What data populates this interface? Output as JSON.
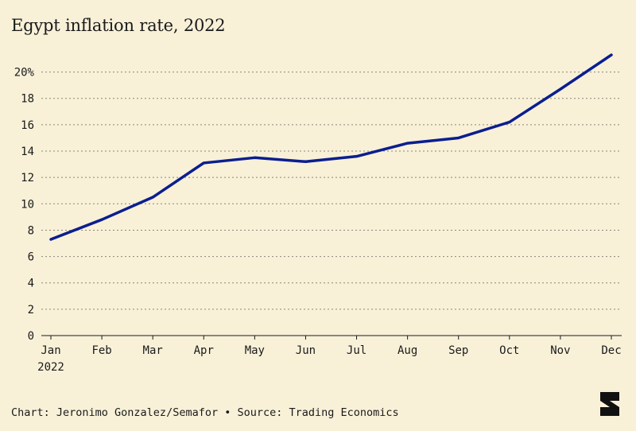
{
  "title": "Egypt inflation rate, 2022",
  "footer": "Chart: Jeronimo Gonzalez/Semafor • Source: Trading Economics",
  "brand_logo": "semafor-logo",
  "chart_data": {
    "type": "line",
    "title": "Egypt inflation rate, 2022",
    "categories": [
      "Jan",
      "Feb",
      "Mar",
      "Apr",
      "May",
      "Jun",
      "Jul",
      "Aug",
      "Sep",
      "Oct",
      "Nov",
      "Dec"
    ],
    "x_sublabel": "2022",
    "series": [
      {
        "values": [
          7.3,
          8.8,
          10.5,
          13.1,
          13.5,
          13.2,
          13.6,
          14.6,
          15.0,
          16.2,
          18.7,
          21.3
        ],
        "color": "#0b1e8f"
      }
    ],
    "ylim": [
      0,
      21.3
    ],
    "yticks": [
      0,
      2,
      4,
      6,
      8,
      10,
      12,
      14,
      16,
      18,
      20
    ],
    "ytick_labels": [
      "0",
      "2",
      "4",
      "6",
      "8",
      "10",
      "12",
      "14",
      "16",
      "18",
      "20%"
    ],
    "grid": "horizontal-dotted",
    "xlabel": "",
    "ylabel": ""
  }
}
